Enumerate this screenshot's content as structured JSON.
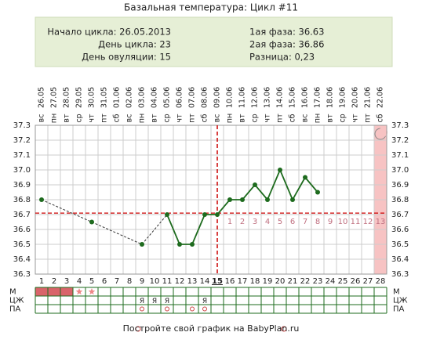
{
  "chart_data": {
    "type": "line",
    "title": "Базальная температура: Цикл #11",
    "info_left": [
      "Начало цикла: 26.05.2013",
      "День цикла: 23",
      "День овуляции: 15"
    ],
    "info_right": [
      "1ая фаза: 36.63",
      "2ая фаза: 36.86",
      "Разница: 0,23"
    ],
    "dates": [
      "26.05",
      "27.05",
      "28.05",
      "29.05",
      "30.05",
      "31.05",
      "01.06",
      "02.06",
      "03.06",
      "04.06",
      "05.06",
      "06.06",
      "07.06",
      "08.06",
      "09.06",
      "10.06",
      "11.06",
      "12.06",
      "13.06",
      "14.06",
      "15.06",
      "16.06",
      "17.06",
      "18.06",
      "19.06",
      "20.06",
      "21.06",
      "22.06"
    ],
    "weekdays": [
      "вс",
      "пн",
      "вт",
      "ср",
      "чт",
      "пт",
      "сб",
      "вс",
      "пн",
      "вт",
      "ср",
      "чт",
      "пт",
      "сб",
      "вс",
      "пн",
      "вт",
      "ср",
      "чт",
      "пт",
      "сб",
      "вс",
      "пн",
      "вт",
      "ср",
      "чт",
      "пт",
      "сб"
    ],
    "categories": [
      1,
      2,
      3,
      4,
      5,
      6,
      7,
      8,
      9,
      10,
      11,
      12,
      13,
      14,
      15,
      16,
      17,
      18,
      19,
      20,
      21,
      22,
      23,
      24,
      25,
      26,
      27,
      28
    ],
    "series": [
      {
        "name": "Температура",
        "color": "#1e6b1e",
        "values": [
          36.8,
          null,
          null,
          null,
          36.65,
          null,
          null,
          null,
          36.5,
          null,
          36.7,
          36.5,
          36.5,
          36.7,
          36.7,
          36.8,
          36.8,
          36.9,
          36.8,
          37.0,
          36.8,
          36.95,
          36.85,
          null,
          null,
          null,
          null,
          null
        ]
      }
    ],
    "ylim": [
      36.3,
      37.3
    ],
    "yticks": [
      36.3,
      36.4,
      36.5,
      36.6,
      36.7,
      36.8,
      36.9,
      {
        "value": 37.0,
        "label": "37.0"
      },
      37.1,
      37.2,
      37.3
    ],
    "coverline": 36.71,
    "ovulation_day": 15,
    "luteal_days": [
      1,
      2,
      3,
      4,
      5,
      6,
      7,
      8,
      9,
      10,
      11,
      12,
      13
    ],
    "rows": [
      {
        "name": "М",
        "period_days": [
          1,
          2,
          3
        ],
        "star_days": [
          4,
          5
        ]
      },
      {
        "name": "ЦЖ",
        "texts": [
          null,
          null,
          null,
          null,
          null,
          null,
          null,
          null,
          "Я",
          "Я",
          "Я",
          null,
          null,
          "Я",
          null,
          null,
          null,
          null,
          null,
          null,
          null,
          null,
          null,
          null,
          null,
          null,
          null,
          null
        ]
      },
      {
        "name": "ПА",
        "circle_days": [
          9,
          11,
          13,
          14
        ]
      }
    ],
    "footer": "Постройте свой график на BabyPlan.ru"
  }
}
